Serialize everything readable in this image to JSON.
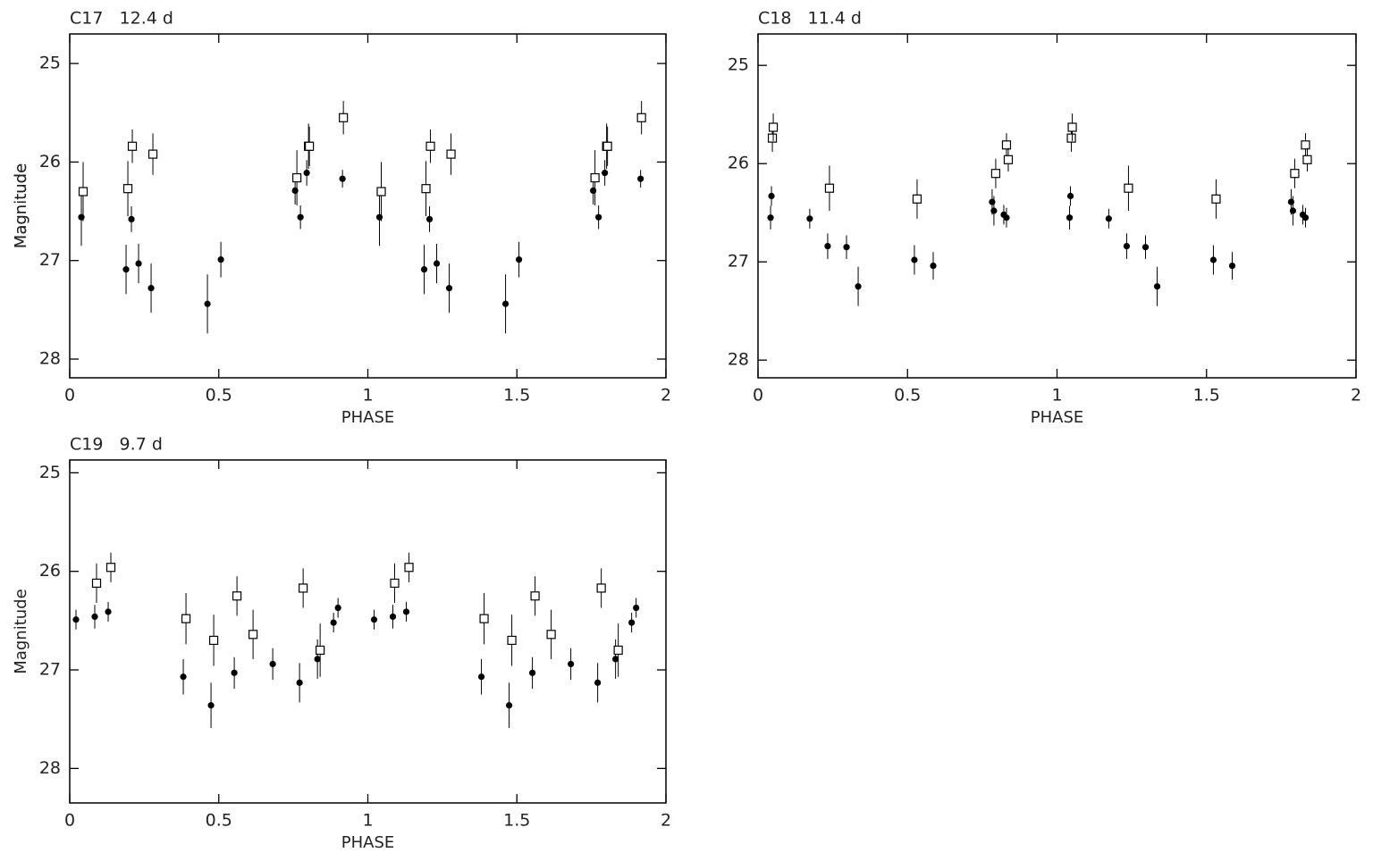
{
  "chart_data": [
    {
      "type": "scatter",
      "title": "C17   12.4 d",
      "xlabel": "PHASE",
      "ylabel": "Magnitude",
      "xlim": [
        0,
        2
      ],
      "ylim": [
        28.19,
        24.7
      ],
      "xticks": [
        0,
        0.5,
        1,
        1.5,
        2
      ],
      "yticks": [
        25,
        26,
        27,
        28
      ],
      "series": [
        {
          "marker": "circle",
          "color": "#000000",
          "x": [
            0.039,
            0.207,
            0.189,
            0.231,
            0.273,
            0.462,
            0.507,
            0.756,
            0.774,
            0.795,
            0.915,
            1.039,
            1.207,
            1.189,
            1.231,
            1.273,
            1.462,
            1.507,
            1.756,
            1.774,
            1.795,
            1.915
          ],
          "values": [
            26.56,
            26.58,
            27.09,
            27.03,
            27.28,
            27.44,
            26.99,
            26.29,
            26.56,
            26.11,
            26.17,
            26.56,
            26.58,
            27.09,
            27.03,
            27.28,
            27.44,
            26.99,
            26.29,
            26.56,
            26.11,
            26.17
          ],
          "errors": [
            0.29,
            0.13,
            0.25,
            0.2,
            0.25,
            0.3,
            0.18,
            0.14,
            0.12,
            0.13,
            0.09,
            0.29,
            0.13,
            0.25,
            0.2,
            0.25,
            0.3,
            0.18,
            0.14,
            0.12,
            0.13,
            0.09
          ]
        },
        {
          "marker": "square",
          "color": "#000000",
          "x": [
            0.045,
            0.195,
            0.21,
            0.279,
            0.762,
            0.801,
            0.804,
            0.918,
            1.045,
            1.195,
            1.21,
            1.279,
            1.762,
            1.801,
            1.804,
            1.918
          ],
          "values": [
            26.3,
            26.27,
            25.84,
            25.92,
            26.16,
            25.84,
            25.84,
            25.55,
            26.3,
            26.27,
            25.84,
            25.92,
            26.16,
            25.84,
            25.84,
            25.55
          ],
          "errors": [
            0.3,
            0.28,
            0.17,
            0.21,
            0.28,
            0.23,
            0.2,
            0.17,
            0.3,
            0.28,
            0.17,
            0.21,
            0.28,
            0.23,
            0.2,
            0.17
          ]
        }
      ]
    },
    {
      "type": "scatter",
      "title": "C18   11.4 d",
      "xlabel": "PHASE",
      "ylabel": "Magnitude",
      "xlim": [
        0,
        2
      ],
      "ylim": [
        28.18,
        24.68
      ],
      "xticks": [
        0,
        0.5,
        1,
        1.5,
        2
      ],
      "yticks": [
        25,
        26,
        27,
        28
      ],
      "series": [
        {
          "marker": "circle",
          "color": "#000000",
          "x": [
            0.042,
            0.045,
            0.173,
            0.233,
            0.296,
            0.335,
            0.523,
            0.586,
            0.783,
            0.789,
            0.822,
            0.831,
            1.042,
            1.045,
            1.173,
            1.233,
            1.296,
            1.335,
            1.523,
            1.586,
            1.783,
            1.789,
            1.822,
            1.831
          ],
          "values": [
            26.55,
            26.33,
            26.56,
            26.84,
            26.85,
            27.25,
            26.98,
            27.04,
            26.39,
            26.48,
            26.52,
            26.55,
            26.55,
            26.33,
            26.56,
            26.84,
            26.85,
            27.25,
            26.98,
            27.04,
            26.39,
            26.48,
            26.52,
            26.55
          ],
          "errors": [
            0.12,
            0.1,
            0.1,
            0.13,
            0.12,
            0.2,
            0.15,
            0.14,
            0.13,
            0.15,
            0.1,
            0.1,
            0.12,
            0.1,
            0.1,
            0.13,
            0.12,
            0.2,
            0.15,
            0.14,
            0.13,
            0.15,
            0.1,
            0.1
          ]
        },
        {
          "marker": "square",
          "color": "#000000",
          "x": [
            0.048,
            0.051,
            0.239,
            0.532,
            0.795,
            0.831,
            0.837,
            1.048,
            1.051,
            1.239,
            1.532,
            1.795,
            1.831,
            1.837
          ],
          "values": [
            25.74,
            25.63,
            26.25,
            26.36,
            26.1,
            25.81,
            25.96,
            25.74,
            25.63,
            26.25,
            26.36,
            26.1,
            25.81,
            25.96
          ],
          "errors": [
            0.14,
            0.14,
            0.23,
            0.2,
            0.15,
            0.12,
            0.12,
            0.14,
            0.14,
            0.23,
            0.2,
            0.15,
            0.12,
            0.12
          ]
        }
      ]
    },
    {
      "type": "scatter",
      "title": "C19   9.7 d",
      "xlabel": "PHASE",
      "ylabel": "Magnitude",
      "xlim": [
        0,
        2
      ],
      "ylim": [
        28.35,
        24.87
      ],
      "xticks": [
        0,
        0.5,
        1,
        1.5,
        2
      ],
      "yticks": [
        25,
        26,
        27,
        28
      ],
      "series": [
        {
          "marker": "circle",
          "color": "#000000",
          "x": [
            0.021,
            0.084,
            0.129,
            0.381,
            0.474,
            0.552,
            0.681,
            0.771,
            0.831,
            0.885,
            0.9,
            1.021,
            1.084,
            1.129,
            1.381,
            1.474,
            1.552,
            1.681,
            1.771,
            1.831,
            1.885,
            1.9
          ],
          "values": [
            26.49,
            26.46,
            26.41,
            27.07,
            27.36,
            27.03,
            26.94,
            27.13,
            26.89,
            26.52,
            26.37,
            26.49,
            26.46,
            26.41,
            27.07,
            27.36,
            27.03,
            26.94,
            27.13,
            26.89,
            26.52,
            26.37
          ],
          "errors": [
            0.1,
            0.12,
            0.1,
            0.18,
            0.23,
            0.16,
            0.16,
            0.2,
            0.2,
            0.1,
            0.1,
            0.1,
            0.12,
            0.1,
            0.18,
            0.23,
            0.16,
            0.16,
            0.2,
            0.2,
            0.1,
            0.1
          ]
        },
        {
          "marker": "square",
          "color": "#000000",
          "x": [
            0.09,
            0.138,
            0.39,
            0.483,
            0.561,
            0.615,
            0.783,
            0.84,
            1.09,
            1.138,
            1.39,
            1.483,
            1.561,
            1.615,
            1.783,
            1.84
          ],
          "values": [
            26.12,
            25.96,
            26.48,
            26.7,
            26.25,
            26.64,
            26.17,
            26.8,
            26.12,
            25.96,
            26.48,
            26.7,
            26.25,
            26.64,
            26.17,
            26.8
          ],
          "errors": [
            0.2,
            0.15,
            0.26,
            0.26,
            0.2,
            0.25,
            0.2,
            0.27,
            0.2,
            0.15,
            0.26,
            0.26,
            0.2,
            0.25,
            0.2,
            0.27
          ]
        }
      ]
    }
  ]
}
